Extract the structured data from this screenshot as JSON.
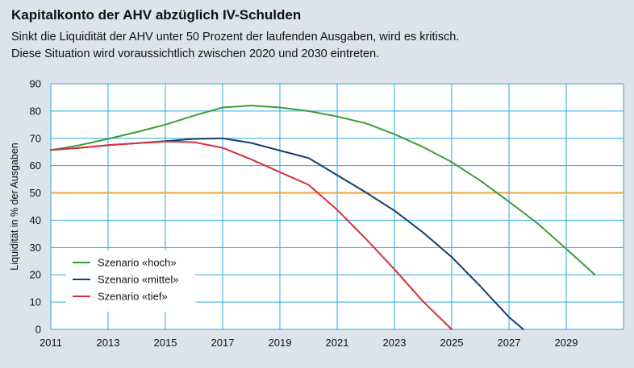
{
  "header": {
    "title": "Kapitalkonto der AHV abzüglich IV-Schulden",
    "subtitle_line1": "Sinkt die Liquidität der AHV unter 50 Prozent der laufenden Ausgaben, wird es kritisch.",
    "subtitle_line2": "Diese Situation wird voraussichtlich zwischen 2020 und 2030 eintreten."
  },
  "colors": {
    "background": "#dde3eb",
    "plot_background": "#ffffff",
    "grid": "#29a9df",
    "threshold": "#f0a23c",
    "hoch": "#3a9e3a",
    "mittel": "#133f6d",
    "tief": "#d92f3c"
  },
  "chart_data": {
    "type": "line",
    "ylabel": "Liquidität in % der Ausgaben",
    "xlabel": "",
    "xlim": [
      2011,
      2031
    ],
    "ylim": [
      0,
      90
    ],
    "x_ticks": [
      "2011",
      "2013",
      "2015",
      "2017",
      "2019",
      "2021",
      "2023",
      "2025",
      "2027",
      "2029"
    ],
    "y_ticks": [
      "0",
      "10",
      "20",
      "30",
      "40",
      "50",
      "60",
      "70",
      "80",
      "90"
    ],
    "grid": true,
    "legend_position": "bottom-left",
    "threshold": 50,
    "series": [
      {
        "name": "Szenario «hoch»",
        "color_key": "hoch",
        "x": [
          2011,
          2012,
          2013,
          2014,
          2015,
          2016,
          2017,
          2018,
          2019,
          2020,
          2021,
          2022,
          2023,
          2024,
          2025,
          2026,
          2027,
          2028,
          2029,
          2030
        ],
        "y": [
          65.7,
          67.5,
          69.8,
          72.3,
          75,
          78.3,
          81.3,
          82,
          81.3,
          80,
          78,
          75.5,
          71.5,
          66.8,
          61.3,
          54.5,
          46.8,
          38.8,
          29.5,
          20
        ]
      },
      {
        "name": "Szenario «mittel»",
        "color_key": "mittel",
        "x": [
          2011,
          2012,
          2013,
          2014,
          2015,
          2016,
          2017,
          2018,
          2019,
          2020,
          2021,
          2022,
          2023,
          2024,
          2025,
          2026,
          2027,
          2027.5
        ],
        "y": [
          65.7,
          66.5,
          67.5,
          68.2,
          69,
          69.8,
          70,
          68.3,
          65.5,
          62.8,
          56.5,
          50.2,
          43.5,
          35.5,
          26.5,
          15.8,
          4.5,
          0
        ]
      },
      {
        "name": "Szenario «tief»",
        "color_key": "tief",
        "x": [
          2011,
          2012,
          2013,
          2014,
          2015,
          2016,
          2017,
          2018,
          2019,
          2020,
          2021,
          2022,
          2023,
          2024,
          2025
        ],
        "y": [
          65.7,
          66.5,
          67.5,
          68.2,
          68.8,
          68.6,
          66.5,
          62.3,
          57.6,
          53,
          43.8,
          33.2,
          22,
          10.2,
          0
        ]
      }
    ]
  }
}
